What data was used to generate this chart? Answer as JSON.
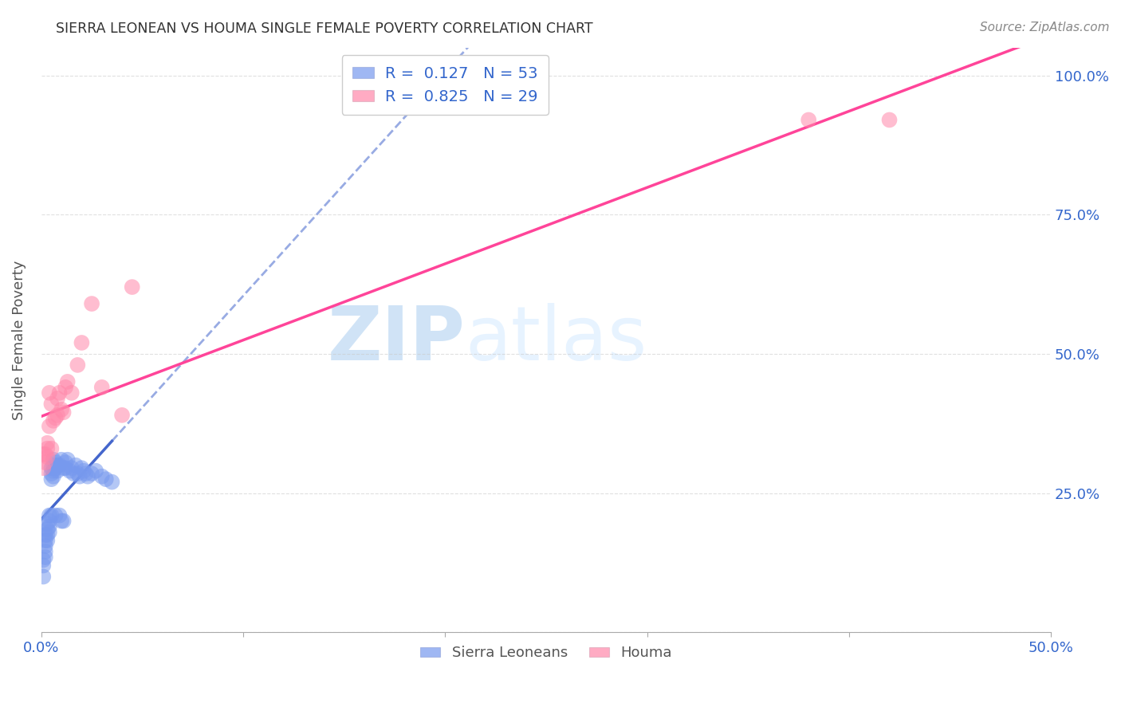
{
  "title": "SIERRA LEONEAN VS HOUMA SINGLE FEMALE POVERTY CORRELATION CHART",
  "source": "Source: ZipAtlas.com",
  "ylabel": "Single Female Poverty",
  "xlim": [
    0.0,
    0.5
  ],
  "ylim": [
    0.0,
    1.05
  ],
  "xticks": [
    0.0,
    0.1,
    0.2,
    0.3,
    0.4,
    0.5
  ],
  "xticklabels": [
    "0.0%",
    "",
    "",
    "",
    "",
    "50.0%"
  ],
  "yticks": [
    0.0,
    0.25,
    0.5,
    0.75,
    1.0
  ],
  "yticklabels": [
    "",
    "25.0%",
    "50.0%",
    "75.0%",
    "100.0%"
  ],
  "grid_color": "#cccccc",
  "background_color": "#ffffff",
  "watermark_zip": "ZIP",
  "watermark_atlas": "atlas",
  "blue_scatter_color": "#7799ee",
  "pink_scatter_color": "#ff88aa",
  "blue_line_color": "#4466cc",
  "pink_line_color": "#ff4499",
  "axis_label_color": "#3366cc",
  "title_color": "#333333",
  "legend_r1": "R =  0.127",
  "legend_n1": "N = 53",
  "legend_r2": "R =  0.825",
  "legend_n2": "N = 29",
  "sierra_x": [
    0.001,
    0.001,
    0.001,
    0.002,
    0.002,
    0.002,
    0.002,
    0.002,
    0.003,
    0.003,
    0.003,
    0.003,
    0.004,
    0.004,
    0.004,
    0.004,
    0.005,
    0.005,
    0.005,
    0.005,
    0.006,
    0.006,
    0.006,
    0.006,
    0.007,
    0.007,
    0.007,
    0.008,
    0.008,
    0.009,
    0.009,
    0.01,
    0.01,
    0.011,
    0.011,
    0.012,
    0.012,
    0.013,
    0.014,
    0.015,
    0.016,
    0.017,
    0.018,
    0.019,
    0.02,
    0.021,
    0.022,
    0.023,
    0.025,
    0.027,
    0.03,
    0.032,
    0.035
  ],
  "sierra_y": [
    0.13,
    0.12,
    0.1,
    0.175,
    0.165,
    0.155,
    0.145,
    0.135,
    0.195,
    0.185,
    0.175,
    0.165,
    0.21,
    0.2,
    0.19,
    0.18,
    0.295,
    0.285,
    0.275,
    0.21,
    0.31,
    0.3,
    0.29,
    0.28,
    0.305,
    0.295,
    0.21,
    0.3,
    0.29,
    0.3,
    0.21,
    0.31,
    0.2,
    0.295,
    0.2,
    0.305,
    0.295,
    0.31,
    0.29,
    0.295,
    0.285,
    0.3,
    0.285,
    0.28,
    0.295,
    0.29,
    0.285,
    0.28,
    0.285,
    0.29,
    0.28,
    0.275,
    0.27
  ],
  "houma_x": [
    0.001,
    0.001,
    0.002,
    0.002,
    0.003,
    0.003,
    0.003,
    0.004,
    0.004,
    0.005,
    0.005,
    0.006,
    0.007,
    0.008,
    0.008,
    0.009,
    0.01,
    0.011,
    0.012,
    0.013,
    0.015,
    0.018,
    0.02,
    0.025,
    0.03,
    0.04,
    0.045,
    0.38,
    0.42
  ],
  "houma_y": [
    0.32,
    0.295,
    0.32,
    0.305,
    0.34,
    0.33,
    0.315,
    0.43,
    0.37,
    0.33,
    0.41,
    0.38,
    0.385,
    0.42,
    0.39,
    0.43,
    0.4,
    0.395,
    0.44,
    0.45,
    0.43,
    0.48,
    0.52,
    0.59,
    0.44,
    0.39,
    0.62,
    0.92,
    0.92
  ]
}
